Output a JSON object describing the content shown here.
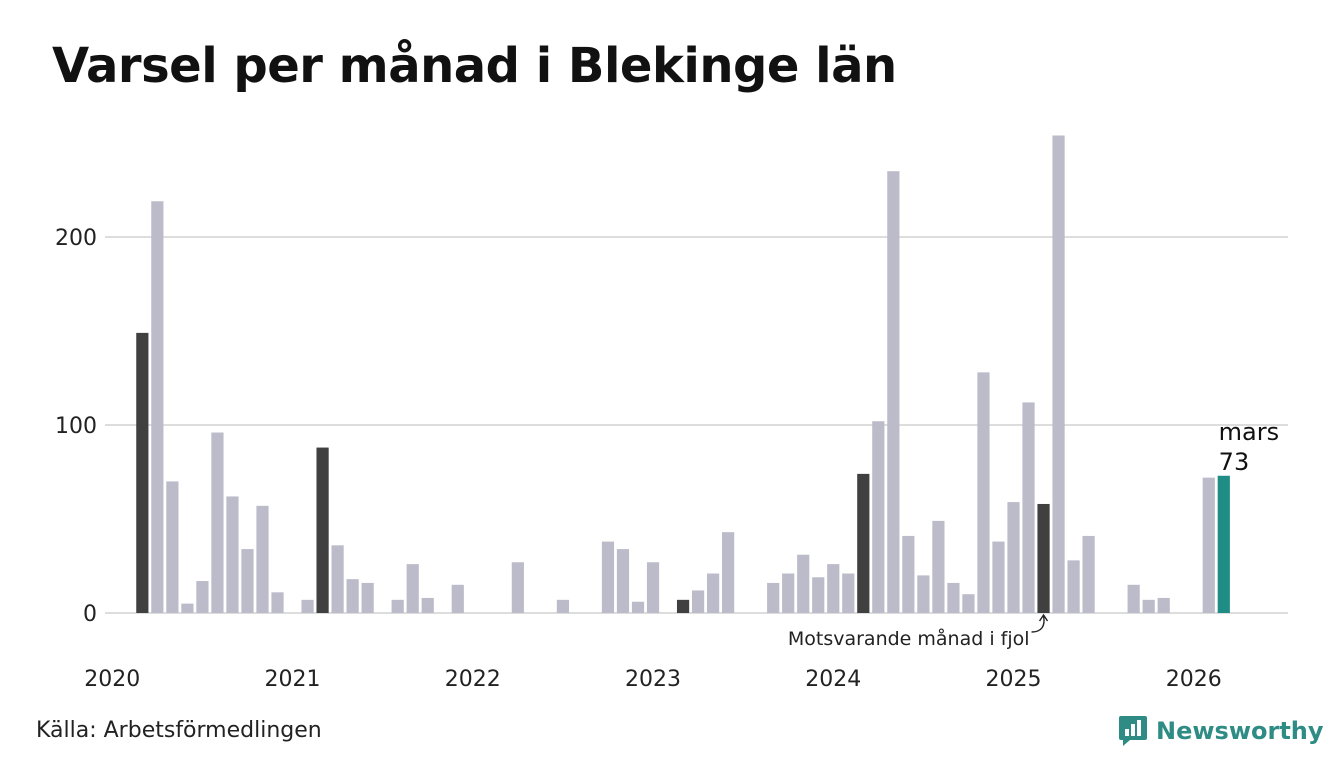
{
  "title": "Varsel per månad i Blekinge län",
  "source": "Källa: Arbetsförmedlingen",
  "brand": "Newsworthy",
  "colors": {
    "bar": "#bcbbca",
    "same_month": "#404040",
    "current": "#1f8d86",
    "grid": "#dddddd",
    "brand": "#2f8c85"
  },
  "chart_data": {
    "type": "bar",
    "title": "Varsel per månad i Blekinge län",
    "xlabel": "",
    "ylabel": "",
    "ylim": [
      0,
      265
    ],
    "yticks": [
      0,
      100,
      200
    ],
    "xticks": [
      "2020",
      "2021",
      "2022",
      "2023",
      "2024",
      "2025",
      "2026"
    ],
    "start": "2020-01",
    "values": [
      0,
      0,
      149,
      219,
      70,
      5,
      17,
      96,
      62,
      34,
      57,
      11,
      0,
      7,
      88,
      36,
      18,
      16,
      0,
      7,
      26,
      8,
      0,
      15,
      0,
      0,
      0,
      27,
      0,
      0,
      7,
      0,
      0,
      38,
      34,
      6,
      27,
      0,
      7,
      12,
      21,
      43,
      0,
      0,
      16,
      21,
      31,
      19,
      26,
      21,
      74,
      102,
      235,
      41,
      20,
      49,
      16,
      10,
      128,
      38,
      59,
      112,
      58,
      254,
      28,
      41,
      0,
      0,
      15,
      7,
      8,
      0,
      0,
      72,
      73
    ],
    "highlight_same_month_indices": [
      2,
      14,
      38,
      50,
      62
    ],
    "current_index": 74,
    "current_label": {
      "month": "mars",
      "value": "73"
    },
    "annotation": "Motsvarande månad i fjol"
  }
}
